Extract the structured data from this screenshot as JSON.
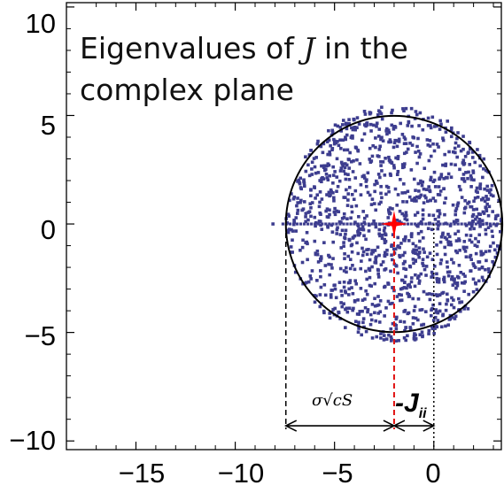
{
  "chart_data": {
    "type": "scatter",
    "title_line1": "Eigenvalues  of ",
    "title_symbol": "J",
    "title_line1_end": " in the",
    "title_line2": "complex plane",
    "xlabel": "",
    "ylabel": "",
    "xlim": [
      -18.5,
      3.4
    ],
    "ylim": [
      -10.4,
      10.2
    ],
    "x_ticks": [
      -15,
      -10,
      -5,
      0
    ],
    "x_tick_labels": [
      "−15",
      "−10",
      "−5",
      "0"
    ],
    "y_ticks": [
      10,
      5,
      0,
      -5,
      -10
    ],
    "y_tick_labels": [
      "10",
      "5",
      "0",
      "−5",
      "−10"
    ],
    "grid": false,
    "circle": {
      "center": [
        -2.0,
        0.0
      ],
      "radius": 5.45
    },
    "eigenvalue_count": 1300,
    "real_axis_x_range": [
      -7.6,
      3.2
    ],
    "outlier_x": -8.1,
    "center_marker": {
      "x": -2.0,
      "y": 0.0
    },
    "radius_annotation": "σ√cS",
    "ji_annotation": "-J",
    "ji_subscript": "ii",
    "colors": {
      "eigenvalues": "#3d3d8f",
      "circle": "#000000",
      "center_marker": "#ff0000",
      "center_line": "#e01010"
    }
  }
}
